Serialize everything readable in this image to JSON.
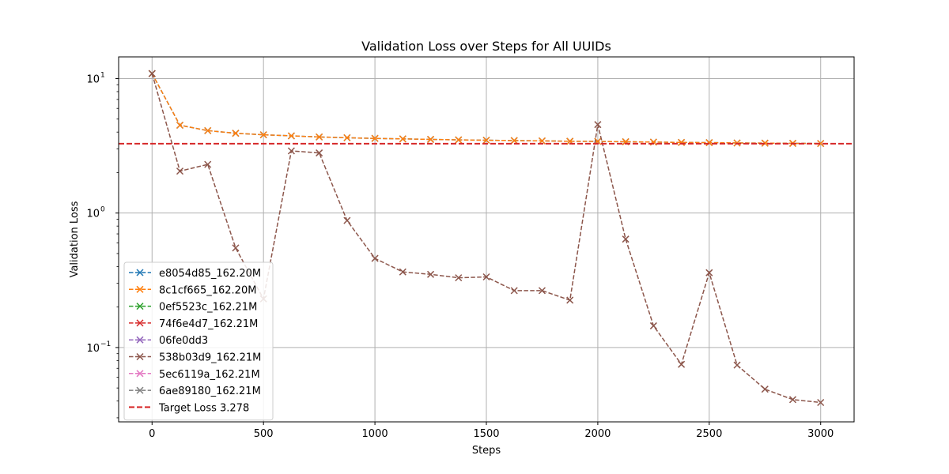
{
  "chart_data": {
    "type": "line",
    "title": "Validation Loss over Steps for All UUIDs",
    "xlabel": "Steps",
    "ylabel": "Validation Loss",
    "xlim": [
      -150,
      3150
    ],
    "ylim": [
      0.028,
      14.5
    ],
    "yscale": "log",
    "grid": true,
    "legend_position": "lower-left",
    "x_ticks": [
      0,
      500,
      1000,
      1500,
      2000,
      2500,
      3000
    ],
    "x_tick_labels": [
      "0",
      "500",
      "1000",
      "1500",
      "2000",
      "2500",
      "3000"
    ],
    "y_ticks": [
      0.1,
      1,
      10
    ],
    "y_tick_labels": [
      "10",
      "10",
      "10"
    ],
    "y_tick_exponents": [
      "−1",
      "0",
      "1"
    ],
    "series": [
      {
        "name": "e8054d85_162.20M",
        "color": "#1f77b4",
        "x": [
          0,
          125,
          250,
          375,
          500,
          625,
          750,
          875,
          1000,
          1125,
          1250,
          1375,
          1500,
          1625,
          1750,
          1875,
          2000,
          2125,
          2250,
          2375,
          2500,
          2625,
          2750,
          2875,
          3000
        ],
        "y": [
          10.9,
          4.5,
          4.1,
          3.92,
          3.82,
          3.75,
          3.68,
          3.63,
          3.59,
          3.56,
          3.53,
          3.5,
          3.48,
          3.46,
          3.44,
          3.42,
          3.41,
          3.39,
          3.37,
          3.35,
          3.34,
          3.32,
          3.31,
          3.3,
          3.29
        ]
      },
      {
        "name": "8c1cf665_162.20M",
        "color": "#ff7f0e",
        "x": [
          0,
          125,
          250,
          375,
          500,
          625,
          750,
          875,
          1000,
          1125,
          1250,
          1375,
          1500,
          1625,
          1750,
          1875,
          2000,
          2125,
          2250,
          2375,
          2500,
          2625,
          2750,
          2875,
          3000
        ],
        "y": [
          10.9,
          4.5,
          4.1,
          3.92,
          3.82,
          3.75,
          3.68,
          3.63,
          3.59,
          3.56,
          3.53,
          3.5,
          3.48,
          3.46,
          3.44,
          3.42,
          3.41,
          3.39,
          3.37,
          3.35,
          3.34,
          3.32,
          3.31,
          3.3,
          3.29
        ]
      },
      {
        "name": "0ef5523c_162.21M",
        "color": "#2ca02c",
        "x": [],
        "y": []
      },
      {
        "name": "74f6e4d7_162.21M",
        "color": "#d62728",
        "x": [],
        "y": []
      },
      {
        "name": "06fe0dd3",
        "color": "#9467bd",
        "x": [],
        "y": []
      },
      {
        "name": "538b03d9_162.21M",
        "color": "#8c564b",
        "x": [
          0,
          125,
          250,
          375,
          500,
          625,
          750,
          875,
          1000,
          1125,
          1250,
          1375,
          1500,
          1625,
          1750,
          1875,
          2000,
          2125,
          2250,
          2375,
          2500,
          2625,
          2750,
          2875,
          3000
        ],
        "y": [
          10.9,
          2.05,
          2.3,
          0.55,
          0.23,
          2.9,
          2.8,
          0.88,
          0.46,
          0.365,
          0.35,
          0.33,
          0.335,
          0.265,
          0.265,
          0.225,
          4.55,
          0.64,
          0.145,
          0.075,
          0.36,
          0.074,
          0.049,
          0.041,
          0.039
        ]
      },
      {
        "name": "5ec6119a_162.21M",
        "color": "#e377c2",
        "x": [],
        "y": []
      },
      {
        "name": "6ae89180_162.21M",
        "color": "#7f7f7f",
        "x": [],
        "y": []
      }
    ],
    "reference_line": {
      "name": "Target Loss 3.278",
      "y": 3.278,
      "color": "#d62728"
    }
  }
}
